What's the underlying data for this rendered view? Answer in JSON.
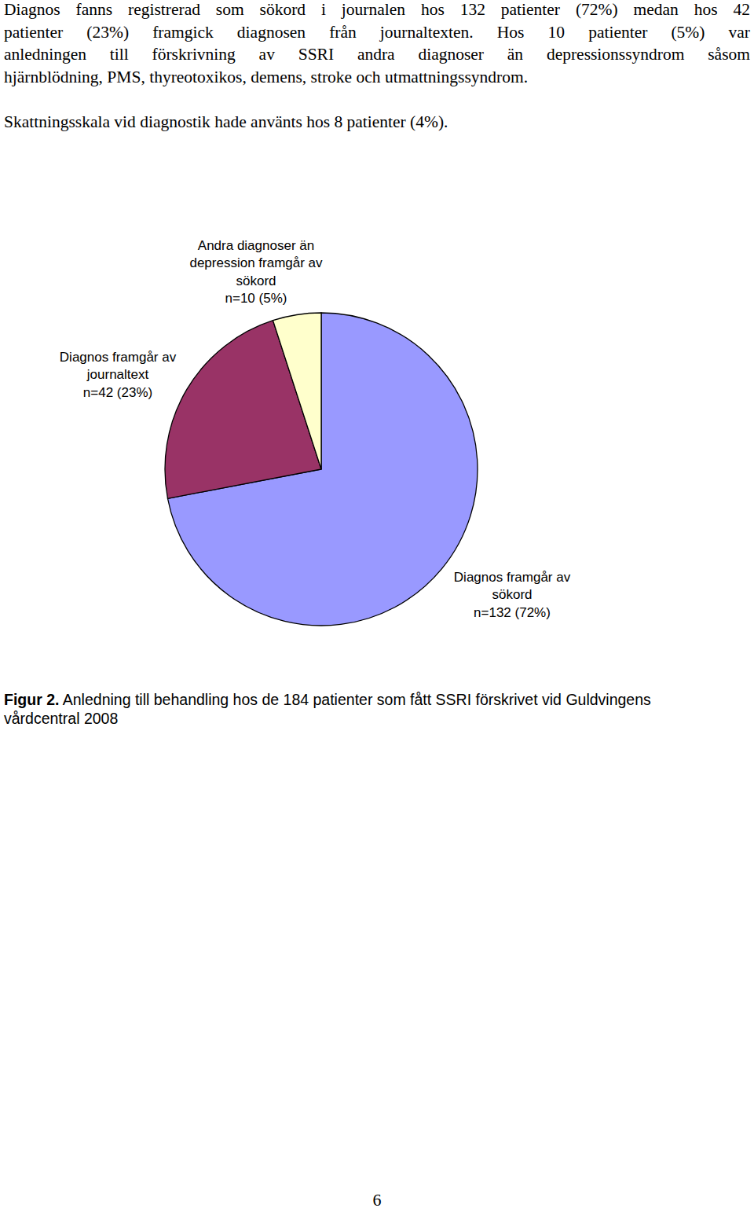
{
  "paragraphs": [
    [
      "Diagnos fanns registrerad som sökord i journalen hos 132 patienter (72%) medan hos 42",
      "patienter (23%) framgick diagnosen från journaltexten. Hos 10 patienter (5%) var",
      "anledningen till förskrivning av SSRI andra diagnoser än depressionssyndrom såsom",
      "hjärnblödning, PMS, thyreotoxikos, demens, stroke och utmattningssyndrom."
    ],
    [
      "Skattningsskala vid diagnostik hade använts hos 8 patienter (4%)."
    ]
  ],
  "chart_data": {
    "type": "pie",
    "categories": [
      "Diagnos framgår av sökord",
      "Diagnos framgår av journaltext",
      "Andra diagnoser än depression framgår av sökord"
    ],
    "values": [
      72,
      23,
      5
    ],
    "value_labels": [
      "n=132 (72%)",
      "n=42 (23%)",
      "n=10 (5%)"
    ],
    "colors": [
      "#9999ff",
      "#993366",
      "#ffffcc"
    ],
    "data_labels": true
  },
  "caption": {
    "label": "Figur 2.",
    "lines": [
      "Anledning till behandling hos de 184 patienter som fått SSRI förskrivet vid Guldvingens",
      "vårdcentral 2008"
    ]
  },
  "page_number": "6"
}
